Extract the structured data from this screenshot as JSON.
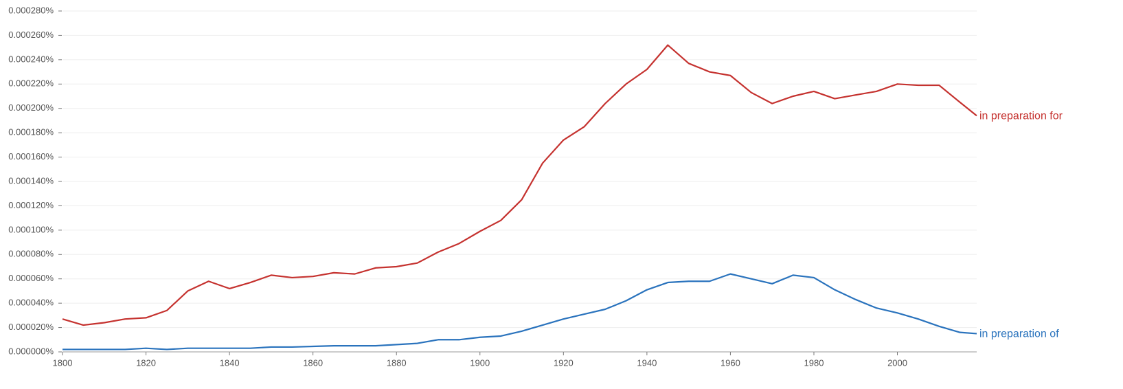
{
  "chart_data": {
    "type": "line",
    "x": [
      1800,
      1805,
      1810,
      1815,
      1820,
      1825,
      1830,
      1835,
      1840,
      1845,
      1850,
      1855,
      1860,
      1865,
      1870,
      1875,
      1880,
      1885,
      1890,
      1895,
      1900,
      1905,
      1910,
      1915,
      1920,
      1925,
      1930,
      1935,
      1940,
      1945,
      1950,
      1955,
      1960,
      1965,
      1970,
      1975,
      1980,
      1985,
      1990,
      1995,
      2000,
      2005,
      2010,
      2015,
      2019
    ],
    "series": [
      {
        "name": "in preparation for",
        "color": "#c5322f",
        "values": [
          2.7e-05,
          2.2e-05,
          2.4e-05,
          2.7e-05,
          2.8e-05,
          3.4e-05,
          5e-05,
          5.8e-05,
          5.2e-05,
          5.7e-05,
          6.3e-05,
          6.1e-05,
          6.2e-05,
          6.5e-05,
          6.4e-05,
          6.9e-05,
          7e-05,
          7.3e-05,
          8.2e-05,
          8.9e-05,
          9.9e-05,
          0.000108,
          0.000125,
          0.000155,
          0.000174,
          0.000185,
          0.000204,
          0.00022,
          0.000232,
          0.000252,
          0.000237,
          0.00023,
          0.000227,
          0.000213,
          0.000204,
          0.00021,
          0.000214,
          0.000208,
          0.000211,
          0.000214,
          0.00022,
          0.000219,
          0.000219,
          0.000205,
          0.000194
        ]
      },
      {
        "name": "in preparation of",
        "color": "#2a73bd",
        "values": [
          2e-06,
          2e-06,
          2e-06,
          2e-06,
          3e-06,
          2e-06,
          3e-06,
          3e-06,
          3e-06,
          3e-06,
          4e-06,
          4e-06,
          4.5e-06,
          5e-06,
          5e-06,
          5e-06,
          6e-06,
          7e-06,
          1e-05,
          1e-05,
          1.2e-05,
          1.3e-05,
          1.7e-05,
          2.2e-05,
          2.7e-05,
          3.1e-05,
          3.5e-05,
          4.2e-05,
          5.1e-05,
          5.7e-05,
          5.8e-05,
          5.8e-05,
          6.4e-05,
          6e-05,
          5.6e-05,
          6.3e-05,
          6.1e-05,
          5.1e-05,
          4.3e-05,
          3.6e-05,
          3.2e-05,
          2.7e-05,
          2.1e-05,
          1.6e-05,
          1.5e-05
        ]
      }
    ],
    "xlim": [
      1800,
      2019
    ],
    "xticks": [
      1800,
      1820,
      1840,
      1860,
      1880,
      1900,
      1920,
      1940,
      1960,
      1980,
      2000
    ],
    "ylim": [
      0,
      0.00028
    ],
    "yticks": [
      {
        "value": 0,
        "label": "0.000000%"
      },
      {
        "value": 2e-05,
        "label": "0.000020%"
      },
      {
        "value": 4e-05,
        "label": "0.000040%"
      },
      {
        "value": 6e-05,
        "label": "0.000060%"
      },
      {
        "value": 8e-05,
        "label": "0.000080%"
      },
      {
        "value": 0.0001,
        "label": "0.000100%"
      },
      {
        "value": 0.00012,
        "label": "0.000120%"
      },
      {
        "value": 0.00014,
        "label": "0.000140%"
      },
      {
        "value": 0.00016,
        "label": "0.000160%"
      },
      {
        "value": 0.00018,
        "label": "0.000180%"
      },
      {
        "value": 0.0002,
        "label": "0.000200%"
      },
      {
        "value": 0.00022,
        "label": "0.000220%"
      },
      {
        "value": 0.00024,
        "label": "0.000240%"
      },
      {
        "value": 0.00026,
        "label": "0.000260%"
      },
      {
        "value": 0.00028,
        "label": "0.000280%"
      }
    ],
    "grid": true
  }
}
